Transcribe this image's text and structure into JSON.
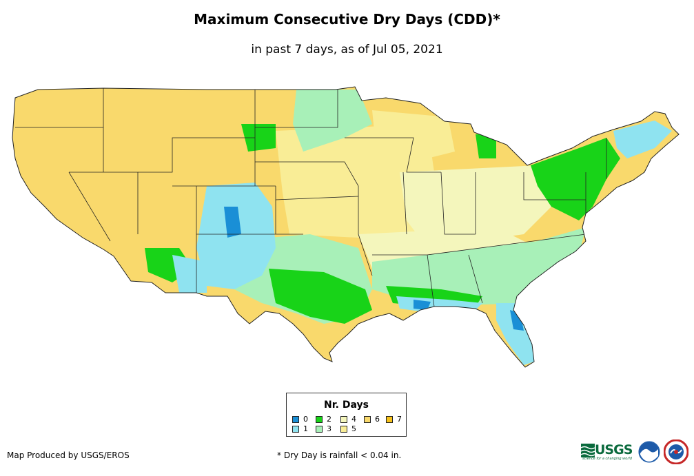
{
  "title": "Maximum Consecutive Dry Days (CDD)*",
  "subtitle": "in past 7 days, as of Jul 05, 2021",
  "legend": {
    "title": "Nr. Days",
    "items": [
      {
        "label": "0",
        "color": "#1a8fd6"
      },
      {
        "label": "1",
        "color": "#8fe3f0"
      },
      {
        "label": "2",
        "color": "#18d318"
      },
      {
        "label": "3",
        "color": "#a8f0b8"
      },
      {
        "label": "4",
        "color": "#f4f6bc"
      },
      {
        "label": "5",
        "color": "#f9ed96"
      },
      {
        "label": "6",
        "color": "#f9d96c"
      },
      {
        "label": "7",
        "color": "#f7c21a"
      }
    ]
  },
  "footer": {
    "credit": "Map Produced by USGS/EROS",
    "note": "* Dry Day is rainfall < 0.04 in."
  },
  "logos": {
    "usgs": "USGS",
    "usgs_tagline": "science for a changing world",
    "noaa": "noaa-logo",
    "nws": "nws-logo"
  }
}
